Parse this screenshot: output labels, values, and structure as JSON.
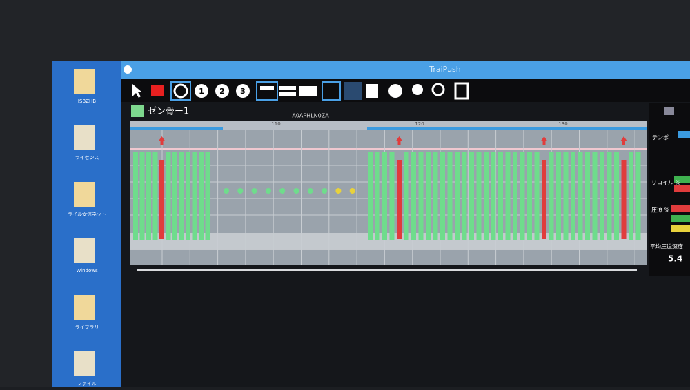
{
  "window": {
    "title": "TraiPush",
    "tab_label": "ゼン骨ー1",
    "header_text": "A0APHLN0ZA"
  },
  "toolbar": {
    "numbers": [
      "1",
      "2",
      "3"
    ]
  },
  "desktop": {
    "icons": [
      "ISBZHB",
      "ライセンス",
      "ライル受信ネット",
      "Windows",
      "ライブラリ",
      "ファイル"
    ]
  },
  "ruler": {
    "labels": [
      "110",
      "120",
      "130"
    ]
  },
  "side_panel": {
    "tempo": "テンポ",
    "recoil": "リコイル %",
    "compression": "圧迫 %",
    "avg_depth_label": "平均圧迫深度",
    "avg_depth_value": "5.4"
  },
  "timeline": {
    "left_bars": [
      "#6fdc8c",
      "#6fdc8c",
      "#6fdc8c",
      "#6fdc8c",
      "#e03c3c",
      "#6fdc8c",
      "#6fdc8c",
      "#6fdc8c",
      "#6fdc8c",
      "#6fdc8c",
      "#6fdc8c",
      "#6fdc8c"
    ],
    "dots": [
      "#6fdc8c",
      "#6fdc8c",
      "#6fdc8c",
      "#6fdc8c",
      "#6fdc8c",
      "#6fdc8c",
      "#6fdc8c",
      "#6fdc8c",
      "#e8d23c",
      "#e8d23c"
    ],
    "right_bars": [
      "#6fdc8c",
      "#6fdc8c",
      "#6fdc8c",
      "#6fdc8c",
      "#e03c3c",
      "#6fdc8c",
      "#6fdc8c",
      "#6fdc8c",
      "#6fdc8c",
      "#6fdc8c",
      "#6fdc8c",
      "#6fdc8c",
      "#6fdc8c",
      "#6fdc8c",
      "#6fdc8c",
      "#6fdc8c",
      "#6fdc8c",
      "#6fdc8c",
      "#6fdc8c",
      "#6fdc8c",
      "#6fdc8c",
      "#6fdc8c",
      "#6fdc8c",
      "#6fdc8c",
      "#e03c3c",
      "#6fdc8c",
      "#6fdc8c",
      "#6fdc8c",
      "#6fdc8c",
      "#6fdc8c",
      "#6fdc8c",
      "#6fdc8c",
      "#6fdc8c",
      "#6fdc8c",
      "#6fdc8c",
      "#e03c3c",
      "#6fdc8c",
      "#6fdc8c"
    ]
  }
}
